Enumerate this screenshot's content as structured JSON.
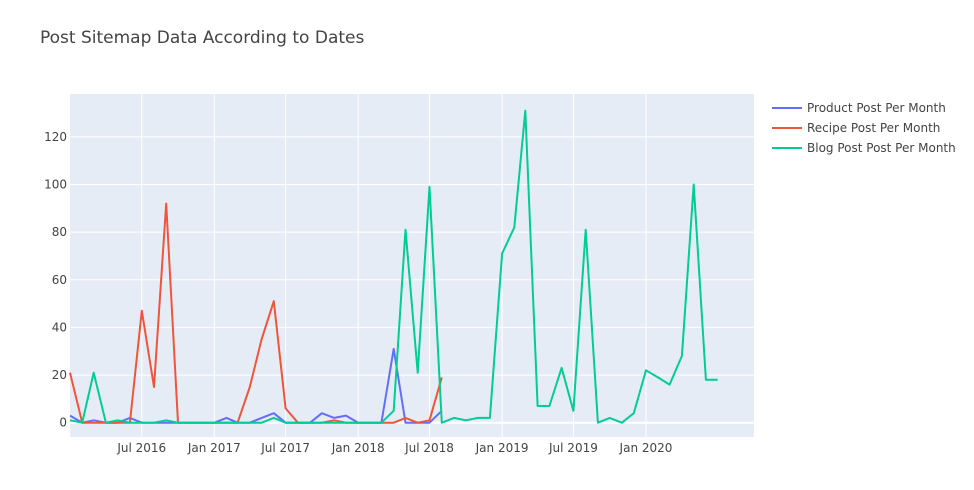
{
  "chart_data": {
    "type": "line",
    "title": "Post Sitemap Data According to Dates",
    "xlabel": "",
    "ylabel": "",
    "x_range": [
      "2016-01-01",
      "2020-10-01"
    ],
    "y_range": [
      -6,
      138
    ],
    "y_ticks": [
      0,
      20,
      40,
      60,
      80,
      100,
      120
    ],
    "x_ticks": [
      {
        "date": "2016-07-01",
        "label": "Jul 2016"
      },
      {
        "date": "2017-01-01",
        "label": "Jan 2017"
      },
      {
        "date": "2017-07-01",
        "label": "Jul 2017"
      },
      {
        "date": "2018-01-01",
        "label": "Jan 2018"
      },
      {
        "date": "2018-07-01",
        "label": "Jul 2018"
      },
      {
        "date": "2019-01-01",
        "label": "Jan 2019"
      },
      {
        "date": "2019-07-01",
        "label": "Jul 2019"
      },
      {
        "date": "2020-01-01",
        "label": "Jan 2020"
      }
    ],
    "grid": true,
    "legend_position": "top-right",
    "series": [
      {
        "name": "Product Post Per Month",
        "color": "#636efa",
        "x": [
          "2016-01",
          "2016-02",
          "2016-03",
          "2016-04",
          "2016-05",
          "2016-06",
          "2016-07",
          "2016-08",
          "2016-09",
          "2016-10",
          "2016-11",
          "2016-12",
          "2017-01",
          "2017-02",
          "2017-03",
          "2017-04",
          "2017-05",
          "2017-06",
          "2017-07",
          "2017-08",
          "2017-09",
          "2017-10",
          "2017-11",
          "2017-12",
          "2018-01",
          "2018-02",
          "2018-03",
          "2018-04",
          "2018-05",
          "2018-06",
          "2018-07",
          "2018-08"
        ],
        "y": [
          3,
          0,
          1,
          0,
          0,
          2,
          0,
          0,
          0,
          0,
          0,
          0,
          0,
          2,
          0,
          0,
          2,
          4,
          0,
          0,
          0,
          4,
          2,
          3,
          0,
          0,
          0,
          31,
          0,
          0,
          0,
          5
        ]
      },
      {
        "name": "Recipe Post Per Month",
        "color": "#ef553b",
        "x": [
          "2016-01",
          "2016-02",
          "2016-03",
          "2016-04",
          "2016-05",
          "2016-06",
          "2016-07",
          "2016-08",
          "2016-09",
          "2016-10",
          "2016-11",
          "2016-12",
          "2017-01",
          "2017-02",
          "2017-03",
          "2017-04",
          "2017-05",
          "2017-06",
          "2017-07",
          "2017-08",
          "2017-09",
          "2017-10",
          "2017-11",
          "2017-12",
          "2018-01",
          "2018-02",
          "2018-03",
          "2018-04",
          "2018-05",
          "2018-06",
          "2018-07",
          "2018-08"
        ],
        "y": [
          21,
          0,
          0,
          0,
          0,
          0,
          47,
          15,
          92,
          0,
          0,
          0,
          0,
          0,
          0,
          15,
          35,
          51,
          6,
          0,
          0,
          0,
          1,
          0,
          0,
          0,
          0,
          0,
          2,
          0,
          1,
          19
        ]
      },
      {
        "name": "Blog Post Post Per Month",
        "color": "#00cc96",
        "x": [
          "2016-01",
          "2016-02",
          "2016-03",
          "2016-04",
          "2016-05",
          "2016-06",
          "2016-07",
          "2016-08",
          "2016-09",
          "2016-10",
          "2016-11",
          "2016-12",
          "2017-01",
          "2017-02",
          "2017-03",
          "2017-04",
          "2017-05",
          "2017-06",
          "2017-07",
          "2017-08",
          "2017-09",
          "2017-10",
          "2017-11",
          "2017-12",
          "2018-01",
          "2018-02",
          "2018-03",
          "2018-04",
          "2018-05",
          "2018-06",
          "2018-07",
          "2018-08",
          "2018-09",
          "2018-10",
          "2018-11",
          "2018-12",
          "2019-01",
          "2019-02",
          "2019-03",
          "2019-04",
          "2019-05",
          "2019-06",
          "2019-07",
          "2019-08",
          "2019-09",
          "2019-10",
          "2019-11",
          "2019-12",
          "2020-01",
          "2020-02",
          "2020-03",
          "2020-04",
          "2020-05",
          "2020-06",
          "2020-07"
        ],
        "y": [
          1,
          0,
          21,
          0,
          1,
          0,
          0,
          0,
          1,
          0,
          0,
          0,
          0,
          0,
          0,
          0,
          0,
          2,
          0,
          0,
          0,
          0,
          0,
          0,
          0,
          0,
          0,
          5,
          81,
          21,
          99,
          0,
          2,
          1,
          2,
          2,
          71,
          82,
          131,
          7,
          7,
          23,
          5,
          81,
          0,
          2,
          0,
          4,
          22,
          19,
          16,
          28,
          100,
          18,
          18
        ]
      }
    ]
  }
}
